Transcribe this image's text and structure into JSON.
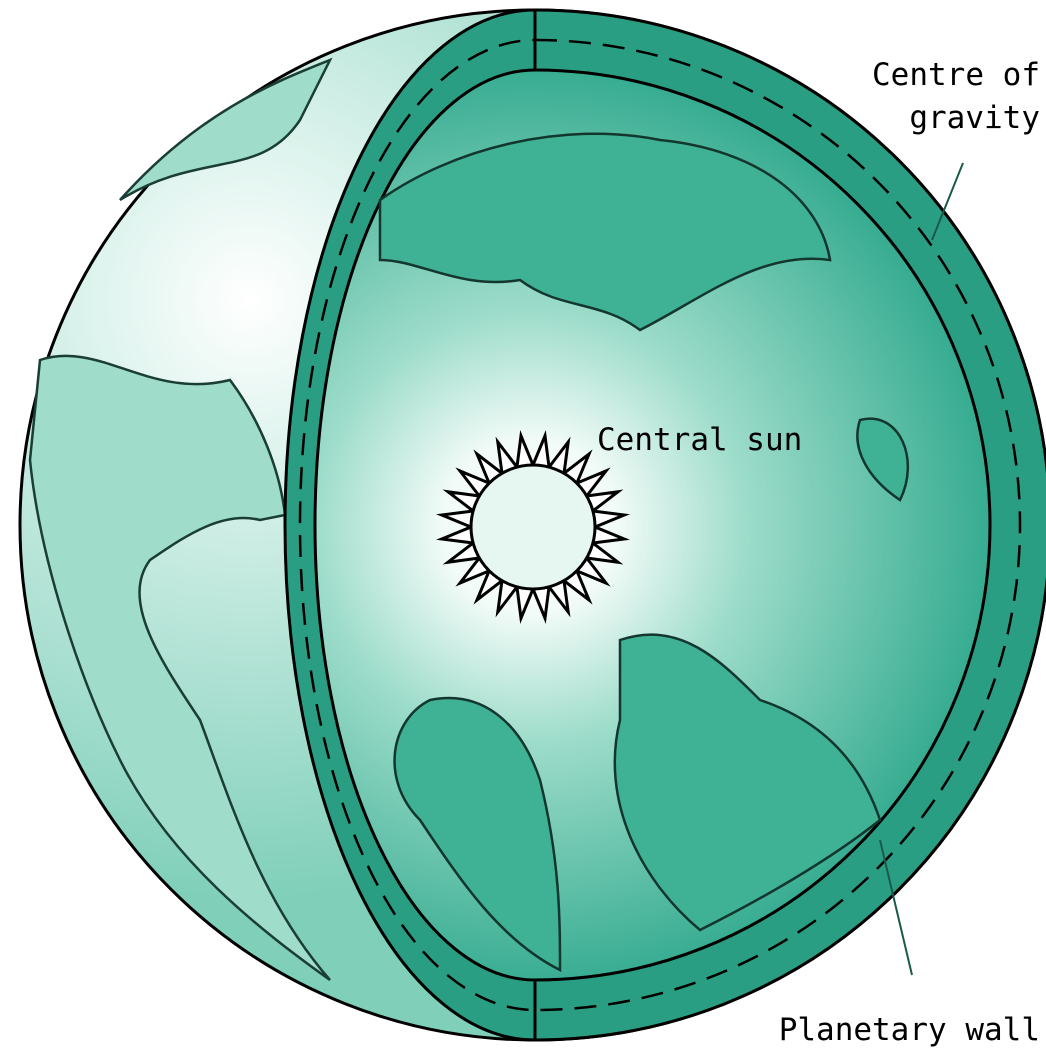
{
  "labels": {
    "centre_of_gravity": [
      "Centre of",
      "gravity"
    ],
    "central_sun": "Central sun",
    "planetary_wall": "Planetary wall"
  }
}
